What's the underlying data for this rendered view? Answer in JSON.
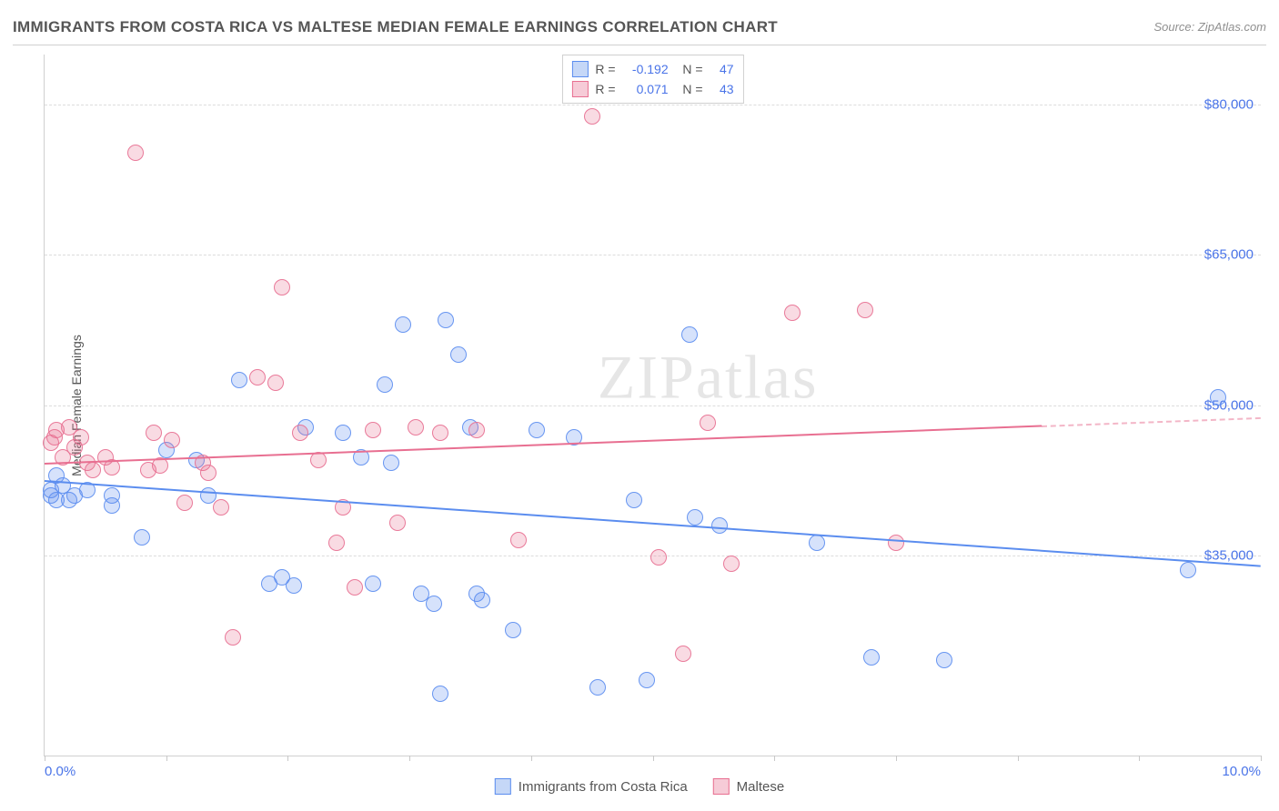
{
  "title": "IMMIGRANTS FROM COSTA RICA VS MALTESE MEDIAN FEMALE EARNINGS CORRELATION CHART",
  "source_label": "Source: ZipAtlas.com",
  "watermark": "ZIPatlas",
  "yaxis_label": "Median Female Earnings",
  "chart": {
    "type": "scatter",
    "xlim": [
      0,
      10
    ],
    "ylim": [
      15000,
      85000
    ],
    "x_tick_labels": [
      "0.0%",
      "10.0%"
    ],
    "x_tick_positions": [
      0,
      1,
      2,
      3,
      4,
      5,
      6,
      7,
      8,
      9,
      10
    ],
    "y_ticks": [
      {
        "v": 35000,
        "label": "$35,000"
      },
      {
        "v": 50000,
        "label": "$50,000"
      },
      {
        "v": 65000,
        "label": "$65,000"
      },
      {
        "v": 80000,
        "label": "$80,000"
      }
    ],
    "background_color": "#ffffff",
    "grid_color": "#dcdcdc",
    "accent_color": "#4a74e8",
    "marker_radius": 9,
    "marker_fill_opacity": 0.25,
    "marker_stroke_opacity": 0.9,
    "series": [
      {
        "name": "Immigrants from Costa Rica",
        "color": "#5b8def",
        "legend_fill": "#c5d7f7",
        "legend_border": "#5b8def",
        "R": "-0.192",
        "N": "47",
        "trend": {
          "y_at_x0": 42500,
          "y_at_x10": 34000,
          "x_solid_end": 10
        },
        "points": [
          [
            0.05,
            41500
          ],
          [
            0.05,
            41000
          ],
          [
            0.1,
            43000
          ],
          [
            0.1,
            40500
          ],
          [
            0.15,
            42000
          ],
          [
            0.2,
            40500
          ],
          [
            0.25,
            41000
          ],
          [
            0.35,
            41500
          ],
          [
            0.55,
            41000
          ],
          [
            0.55,
            40000
          ],
          [
            0.8,
            36800
          ],
          [
            1.0,
            45500
          ],
          [
            1.25,
            44500
          ],
          [
            1.35,
            41000
          ],
          [
            1.6,
            52500
          ],
          [
            1.85,
            32200
          ],
          [
            1.95,
            32800
          ],
          [
            2.05,
            32000
          ],
          [
            2.15,
            47800
          ],
          [
            2.45,
            47200
          ],
          [
            2.6,
            44800
          ],
          [
            2.7,
            32200
          ],
          [
            2.8,
            52000
          ],
          [
            2.85,
            44200
          ],
          [
            2.95,
            58000
          ],
          [
            3.1,
            31200
          ],
          [
            3.2,
            30200
          ],
          [
            3.25,
            21200
          ],
          [
            3.3,
            58500
          ],
          [
            3.4,
            55000
          ],
          [
            3.5,
            47800
          ],
          [
            3.55,
            31200
          ],
          [
            3.6,
            30500
          ],
          [
            3.85,
            27500
          ],
          [
            4.05,
            47500
          ],
          [
            4.35,
            46800
          ],
          [
            4.55,
            21800
          ],
          [
            4.85,
            40500
          ],
          [
            4.95,
            22500
          ],
          [
            5.3,
            57000
          ],
          [
            5.35,
            38800
          ],
          [
            5.55,
            38000
          ],
          [
            6.35,
            36200
          ],
          [
            6.8,
            24800
          ],
          [
            7.4,
            24500
          ],
          [
            9.4,
            33500
          ],
          [
            9.65,
            50800
          ]
        ]
      },
      {
        "name": "Maltese",
        "color": "#e86f91",
        "legend_fill": "#f6cbd7",
        "legend_border": "#e86f91",
        "R": "0.071",
        "N": "43",
        "trend": {
          "y_at_x0": 44200,
          "y_at_x10": 48800,
          "x_solid_end": 8.2
        },
        "points": [
          [
            0.05,
            46200
          ],
          [
            0.08,
            46800
          ],
          [
            0.1,
            47500
          ],
          [
            0.15,
            44800
          ],
          [
            0.2,
            47800
          ],
          [
            0.25,
            45800
          ],
          [
            0.3,
            46800
          ],
          [
            0.35,
            44200
          ],
          [
            0.4,
            43500
          ],
          [
            0.5,
            44800
          ],
          [
            0.55,
            43800
          ],
          [
            0.75,
            75200
          ],
          [
            0.85,
            43500
          ],
          [
            0.9,
            47200
          ],
          [
            0.95,
            44000
          ],
          [
            1.05,
            46500
          ],
          [
            1.15,
            40200
          ],
          [
            1.3,
            44200
          ],
          [
            1.35,
            43200
          ],
          [
            1.45,
            39800
          ],
          [
            1.55,
            26800
          ],
          [
            1.75,
            52800
          ],
          [
            1.9,
            52200
          ],
          [
            1.95,
            61800
          ],
          [
            2.1,
            47200
          ],
          [
            2.25,
            44500
          ],
          [
            2.4,
            36200
          ],
          [
            2.45,
            39800
          ],
          [
            2.55,
            31800
          ],
          [
            2.7,
            47500
          ],
          [
            2.9,
            38200
          ],
          [
            3.05,
            47800
          ],
          [
            3.25,
            47200
          ],
          [
            3.55,
            47500
          ],
          [
            3.9,
            36500
          ],
          [
            4.5,
            78800
          ],
          [
            5.05,
            34800
          ],
          [
            5.25,
            25200
          ],
          [
            5.45,
            48200
          ],
          [
            5.65,
            34200
          ],
          [
            6.15,
            59200
          ],
          [
            6.75,
            59500
          ],
          [
            7.0,
            36200
          ]
        ]
      }
    ]
  },
  "bottom_legend": [
    {
      "label": "Immigrants from Costa Rica",
      "fill": "#c5d7f7",
      "border": "#5b8def"
    },
    {
      "label": "Maltese",
      "fill": "#f6cbd7",
      "border": "#e86f91"
    }
  ]
}
